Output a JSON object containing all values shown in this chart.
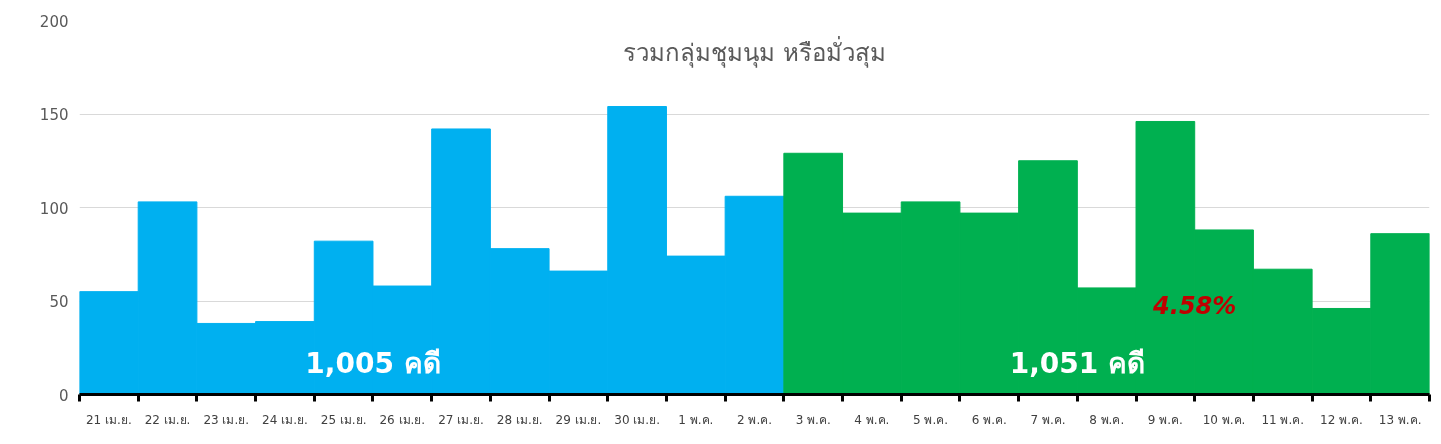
{
  "chart_data": {
    "type": "bar",
    "title": "รวมกลุ่มชุมนุม หรือมั่วสุม",
    "categories": [
      "21 เม.ย.",
      "22 เม.ย.",
      "23 เม.ย.",
      "24 เม.ย.",
      "25 เม.ย.",
      "26 เม.ย.",
      "27 เม.ย.",
      "28 เม.ย.",
      "29 เม.ย.",
      "30 เม.ย.",
      "1 พ.ค.",
      "2 พ.ค.",
      "3 พ.ค.",
      "4 พ.ค.",
      "5 พ.ค.",
      "6 พ.ค.",
      "7 พ.ค.",
      "8 พ.ค.",
      "9 พ.ค.",
      "10 พ.ค.",
      "11 พ.ค.",
      "12 พ.ค.",
      "13 พ.ค."
    ],
    "values": [
      55,
      103,
      38,
      39,
      82,
      58,
      142,
      78,
      66,
      154,
      74,
      106,
      129,
      97,
      103,
      97,
      125,
      57,
      146,
      88,
      67,
      46,
      86
    ],
    "colors": [
      "#00b0f0",
      "#00b0f0",
      "#00b0f0",
      "#00b0f0",
      "#00b0f0",
      "#00b0f0",
      "#00b0f0",
      "#00b0f0",
      "#00b0f0",
      "#00b0f0",
      "#00b0f0",
      "#00b0f0",
      "#00b050",
      "#00b050",
      "#00b050",
      "#00b050",
      "#00b050",
      "#00b050",
      "#00b050",
      "#00b050",
      "#00b050",
      "#00b050",
      "#00b050"
    ],
    "ylim": [
      0,
      200
    ],
    "yticks": [
      0,
      50,
      100,
      150,
      200
    ],
    "grid": "y",
    "annotations": [
      "1,005 คดี",
      "1,051 คดี",
      "4.58%"
    ]
  }
}
